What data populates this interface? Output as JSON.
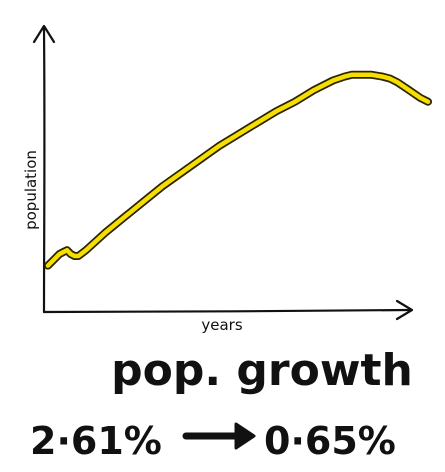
{
  "chart_data": {
    "type": "line",
    "title": "",
    "xlabel": "years",
    "ylabel": "population",
    "grid": false,
    "x": [
      0,
      2,
      3,
      4,
      5,
      6,
      7,
      8,
      10,
      15,
      20,
      25,
      30,
      35,
      40,
      45,
      50,
      55,
      60,
      65,
      70,
      75,
      78,
      80,
      82,
      85,
      88,
      90,
      92,
      95,
      98,
      100
    ],
    "series": [
      {
        "color": "#f5de00",
        "values": [
          0.23,
          0.27,
          0.29,
          0.3,
          0.31,
          0.29,
          0.28,
          0.28,
          0.31,
          0.4,
          0.48,
          0.56,
          0.64,
          0.71,
          0.78,
          0.85,
          0.91,
          0.97,
          1.03,
          1.08,
          1.14,
          1.19,
          1.21,
          1.22,
          1.22,
          1.22,
          1.21,
          1.2,
          1.18,
          1.14,
          1.1,
          1.08
        ]
      }
    ],
    "xlim": [
      0,
      100
    ],
    "ylim": [
      0,
      1.4
    ]
  },
  "caption": {
    "title": "pop. growth",
    "growth_from": "2·61%",
    "growth_to": "0·65%"
  }
}
